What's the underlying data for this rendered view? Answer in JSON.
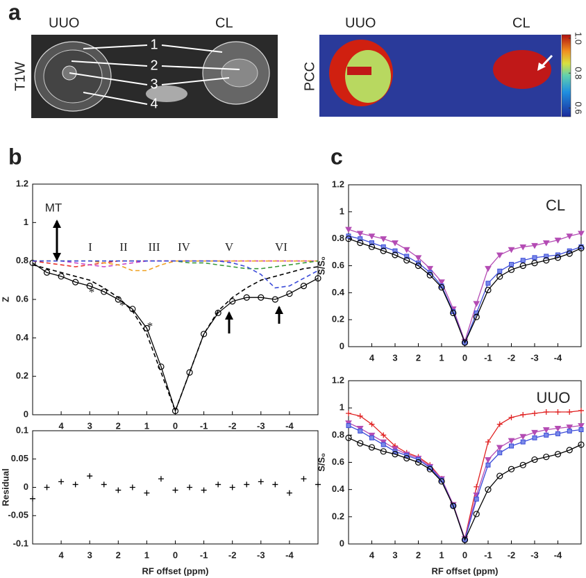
{
  "figure": {
    "panel_labels": [
      "a",
      "b",
      "c"
    ],
    "t1w": {
      "label": "T1W",
      "left": "UUO",
      "right": "CL",
      "regions": [
        "1",
        "2",
        "3",
        "4"
      ]
    },
    "pcc": {
      "label": "PCC",
      "left": "UUO",
      "right": "CL",
      "colorbar": {
        "lim": [
          0.55,
          1.02
        ],
        "ticks": [
          0.6,
          0.8,
          {
            "value": 1,
            "label": "1.0"
          }
        ]
      }
    }
  },
  "chart_data": [
    {
      "type": "line",
      "ylabel": "Z",
      "annotations": [
        "MT",
        "I",
        "II",
        "III",
        "IV",
        "V",
        "VI",
        "*",
        "*",
        "*"
      ],
      "x": [
        5,
        4.5,
        4,
        3.5,
        3,
        2.5,
        2,
        1.5,
        1,
        0.5,
        0,
        -0.5,
        -1,
        -1.5,
        -2,
        -2.5,
        -3,
        -3.5,
        -4,
        -4.5,
        -5
      ],
      "xlim": [
        5,
        -5
      ],
      "xticks": [
        4,
        3,
        2,
        1,
        0,
        -1,
        -2,
        -3,
        -4
      ],
      "ylim": [
        0,
        1.2
      ],
      "yticks": [
        0,
        0.2,
        0.4,
        0.6,
        0.8,
        1,
        1.2
      ],
      "series": [
        {
          "color": "#000000",
          "marker": "circle",
          "values": [
            0.79,
            0.74,
            0.72,
            0.69,
            0.67,
            0.64,
            0.6,
            0.55,
            0.45,
            0.25,
            0.02,
            0.22,
            0.42,
            0.53,
            0.59,
            0.61,
            0.61,
            0.6,
            0.63,
            0.67,
            0.71
          ]
        },
        {
          "color": "#000000",
          "dash": true,
          "values": [
            0.78,
            0.76,
            0.74,
            0.72,
            0.7,
            0.66,
            0.61,
            0.54,
            0.42,
            0.22,
            0.02,
            0.22,
            0.42,
            0.54,
            0.61,
            0.66,
            0.7,
            0.72,
            0.74,
            0.76,
            0.77
          ]
        },
        {
          "color": "#e8312a",
          "dash": true,
          "values": [
            0.8,
            0.79,
            0.78,
            0.77,
            0.78,
            0.79,
            0.8,
            0.8,
            0.8,
            0.8,
            0.8,
            0.8,
            0.8,
            0.8,
            0.8,
            0.8,
            0.8,
            0.8,
            0.8,
            0.8,
            0.8
          ]
        },
        {
          "color": "#c844c8",
          "dash": true,
          "values": [
            0.8,
            0.8,
            0.8,
            0.79,
            0.78,
            0.77,
            0.78,
            0.79,
            0.8,
            0.8,
            0.8,
            0.8,
            0.8,
            0.8,
            0.8,
            0.8,
            0.8,
            0.8,
            0.8,
            0.8,
            0.8
          ]
        },
        {
          "color": "#f0a020",
          "dash": true,
          "values": [
            0.8,
            0.8,
            0.8,
            0.8,
            0.8,
            0.79,
            0.78,
            0.75,
            0.75,
            0.78,
            0.8,
            0.8,
            0.8,
            0.8,
            0.8,
            0.8,
            0.8,
            0.8,
            0.8,
            0.8,
            0.8
          ]
        },
        {
          "color": "#3a9a3a",
          "dash": true,
          "values": [
            0.8,
            0.8,
            0.8,
            0.8,
            0.8,
            0.8,
            0.8,
            0.8,
            0.8,
            0.8,
            0.8,
            0.79,
            0.79,
            0.78,
            0.77,
            0.76,
            0.76,
            0.77,
            0.78,
            0.79,
            0.8
          ]
        },
        {
          "color": "#3a4ad8",
          "dash": true,
          "values": [
            0.8,
            0.8,
            0.8,
            0.8,
            0.8,
            0.8,
            0.8,
            0.8,
            0.8,
            0.8,
            0.8,
            0.8,
            0.8,
            0.8,
            0.79,
            0.77,
            0.73,
            0.66,
            0.67,
            0.71,
            0.75
          ]
        }
      ]
    },
    {
      "type": "scatter",
      "ylabel": "Residual",
      "xlabel": "RF offset (ppm)",
      "x": [
        5,
        4.5,
        4,
        3.5,
        3,
        2.5,
        2,
        1.5,
        1,
        0.5,
        0,
        -0.5,
        -1,
        -1.5,
        -2,
        -2.5,
        -3,
        -3.5,
        -4,
        -4.5,
        -5
      ],
      "xlim": [
        5,
        -5
      ],
      "xticks": [
        4,
        3,
        2,
        1,
        0,
        -1,
        -2,
        -3,
        -4
      ],
      "ylim": [
        -0.1,
        0.1
      ],
      "yticks": [
        -0.1,
        -0.05,
        0,
        0.05,
        0.1
      ],
      "series": [
        {
          "color": "#000000",
          "marker": "plus",
          "values": [
            -0.02,
            0,
            0.01,
            0.005,
            0.02,
            0.005,
            -0.005,
            0,
            -0.01,
            0.015,
            -0.005,
            0,
            -0.005,
            0.005,
            0,
            0.005,
            0.01,
            0.005,
            -0.01,
            0.015,
            0.005
          ]
        }
      ]
    },
    {
      "type": "line",
      "ylabel": "S/S₀",
      "annotations": [
        "CL"
      ],
      "x": [
        5,
        4.5,
        4,
        3.5,
        3,
        2.5,
        2,
        1.5,
        1,
        0.5,
        0,
        -0.5,
        -1,
        -1.5,
        -2,
        -2.5,
        -3,
        -3.5,
        -4,
        -4.5,
        -5
      ],
      "xlim": [
        5,
        -5
      ],
      "xticks": [
        4,
        3,
        2,
        1,
        0,
        -1,
        -2,
        -3,
        -4
      ],
      "ylim": [
        0,
        1.2
      ],
      "yticks": [
        0,
        0.2,
        0.4,
        0.6,
        0.8,
        1,
        1.2
      ],
      "series": [
        {
          "color": "#b44cb4",
          "marker": "triangle",
          "values": [
            0.87,
            0.84,
            0.82,
            0.8,
            0.77,
            0.72,
            0.66,
            0.58,
            0.48,
            0.28,
            0.04,
            0.32,
            0.58,
            0.68,
            0.72,
            0.74,
            0.75,
            0.77,
            0.79,
            0.82,
            0.84
          ]
        },
        {
          "color": "#3a4ad8",
          "marker": "square",
          "values": [
            0.82,
            0.8,
            0.77,
            0.74,
            0.71,
            0.67,
            0.62,
            0.55,
            0.45,
            0.26,
            0.03,
            0.25,
            0.47,
            0.56,
            0.61,
            0.64,
            0.66,
            0.67,
            0.68,
            0.71,
            0.74
          ]
        },
        {
          "color": "#000000",
          "marker": "circle",
          "values": [
            0.8,
            0.77,
            0.74,
            0.71,
            0.68,
            0.64,
            0.6,
            0.53,
            0.44,
            0.25,
            0.03,
            0.22,
            0.42,
            0.52,
            0.57,
            0.6,
            0.62,
            0.64,
            0.66,
            0.69,
            0.73
          ]
        }
      ]
    },
    {
      "type": "line",
      "ylabel": "S/S₀",
      "xlabel": "RF offset (ppm)",
      "annotations": [
        "UUO"
      ],
      "x": [
        5,
        4.5,
        4,
        3.5,
        3,
        2.5,
        2,
        1.5,
        1,
        0.5,
        0,
        -0.5,
        -1,
        -1.5,
        -2,
        -2.5,
        -3,
        -3.5,
        -4,
        -4.5,
        -5
      ],
      "xlim": [
        5,
        -5
      ],
      "xticks": [
        4,
        3,
        2,
        1,
        0,
        -1,
        -2,
        -3,
        -4
      ],
      "ylim": [
        0,
        1.2
      ],
      "yticks": [
        0,
        0.2,
        0.4,
        0.6,
        0.8,
        1,
        1.2
      ],
      "series": [
        {
          "color": "#e02020",
          "marker": "plus",
          "values": [
            0.96,
            0.94,
            0.88,
            0.8,
            0.72,
            0.67,
            0.64,
            0.58,
            0.48,
            0.28,
            0.04,
            0.42,
            0.75,
            0.88,
            0.93,
            0.95,
            0.96,
            0.97,
            0.97,
            0.97,
            0.98
          ]
        },
        {
          "color": "#b44cb4",
          "marker": "triangle",
          "values": [
            0.89,
            0.85,
            0.8,
            0.75,
            0.7,
            0.66,
            0.63,
            0.57,
            0.48,
            0.29,
            0.04,
            0.36,
            0.62,
            0.71,
            0.76,
            0.79,
            0.82,
            0.84,
            0.85,
            0.86,
            0.87
          ]
        },
        {
          "color": "#3a4ad8",
          "marker": "square",
          "values": [
            0.87,
            0.83,
            0.78,
            0.73,
            0.68,
            0.65,
            0.62,
            0.56,
            0.47,
            0.28,
            0.03,
            0.33,
            0.58,
            0.67,
            0.72,
            0.75,
            0.78,
            0.8,
            0.81,
            0.83,
            0.84
          ]
        },
        {
          "color": "#000000",
          "marker": "circle",
          "values": [
            0.78,
            0.74,
            0.71,
            0.68,
            0.66,
            0.63,
            0.6,
            0.55,
            0.46,
            0.28,
            0.03,
            0.22,
            0.4,
            0.5,
            0.55,
            0.58,
            0.62,
            0.64,
            0.66,
            0.69,
            0.73
          ]
        }
      ]
    }
  ]
}
